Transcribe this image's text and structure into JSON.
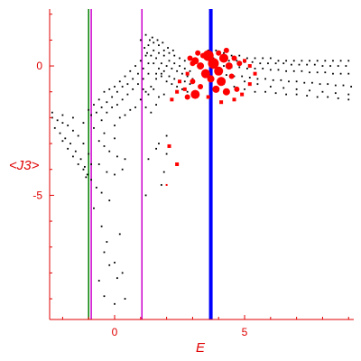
{
  "chart_data": {
    "type": "scatter",
    "title": "",
    "xlabel": "E",
    "ylabel": "<J3>",
    "xlim": [
      -2.5,
      9.2
    ],
    "ylim": [
      -9.8,
      2.2
    ],
    "grid": false,
    "x_ticks": [
      0,
      5
    ],
    "y_ticks": [
      0,
      -5
    ],
    "colors": {
      "axis": "#e00000",
      "points": "#000000",
      "highlight": "#ff0000",
      "line_green": "#008000",
      "line_magenta": "#cc00cc",
      "line_blue": "#0000ff"
    },
    "vertical_lines": [
      {
        "x": -1.0,
        "color": "#008000",
        "width": 1.5
      },
      {
        "x": -0.9,
        "color": "#cc00cc",
        "width": 1.5
      },
      {
        "x": 1.05,
        "color": "#cc00cc",
        "width": 1.5
      },
      {
        "x": 3.7,
        "color": "#0000ff",
        "width": 4
      }
    ],
    "series": [
      {
        "color": "#000000",
        "points": [
          [
            -2.4,
            -2.0
          ],
          [
            -2.2,
            -2.1
          ],
          [
            -2.0,
            -2.2
          ],
          [
            -1.8,
            -2.3
          ],
          [
            -1.6,
            -2.5
          ],
          [
            -1.4,
            -2.7
          ],
          [
            -1.2,
            -3.0
          ],
          [
            -1.0,
            -3.4
          ],
          [
            -0.9,
            -3.8
          ],
          [
            -2.3,
            -2.4
          ],
          [
            -2.1,
            -2.6
          ],
          [
            -1.9,
            -2.8
          ],
          [
            -1.7,
            -3.0
          ],
          [
            -1.5,
            -3.3
          ],
          [
            -1.3,
            -3.6
          ],
          [
            -1.15,
            -3.9
          ],
          [
            -1.05,
            -4.2
          ],
          [
            -2.0,
            -2.9
          ],
          [
            -1.8,
            -3.2
          ],
          [
            -1.6,
            -3.5
          ],
          [
            -1.4,
            -3.8
          ],
          [
            -1.2,
            -4.0
          ],
          [
            -1.1,
            -4.3
          ],
          [
            -2.4,
            -1.8
          ],
          [
            -2.0,
            -1.9
          ],
          [
            -1.6,
            -2.0
          ],
          [
            -1.2,
            -2.2
          ],
          [
            -0.8,
            -2.4
          ],
          [
            -0.4,
            -2.6
          ],
          [
            0.0,
            -2.8
          ],
          [
            -1.0,
            -1.7
          ],
          [
            -0.8,
            -1.5
          ],
          [
            -0.6,
            -1.3
          ],
          [
            -0.4,
            -1.0
          ],
          [
            -0.2,
            -0.9
          ],
          [
            0.0,
            -0.8
          ],
          [
            0.2,
            -0.6
          ],
          [
            0.4,
            -0.4
          ],
          [
            0.6,
            -0.2
          ],
          [
            0.8,
            0.0
          ],
          [
            1.0,
            0.2
          ],
          [
            1.2,
            0.4
          ],
          [
            -0.9,
            -1.9
          ],
          [
            -0.7,
            -1.8
          ],
          [
            -0.5,
            -1.6
          ],
          [
            -0.3,
            -1.4
          ],
          [
            -0.1,
            -1.2
          ],
          [
            0.1,
            -1.0
          ],
          [
            0.3,
            -0.8
          ],
          [
            0.5,
            -0.7
          ],
          [
            0.7,
            -0.5
          ],
          [
            0.9,
            -0.3
          ],
          [
            1.1,
            -0.1
          ],
          [
            1.3,
            0.1
          ],
          [
            -0.5,
            -2.1
          ],
          [
            -0.3,
            -1.8
          ],
          [
            -0.1,
            -1.6
          ],
          [
            0.1,
            -1.5
          ],
          [
            0.3,
            -1.3
          ],
          [
            0.5,
            -1.1
          ],
          [
            0.7,
            -0.9
          ],
          [
            0.9,
            -0.7
          ],
          [
            1.1,
            -0.5
          ],
          [
            1.3,
            -0.3
          ],
          [
            0.0,
            -2.3
          ],
          [
            0.2,
            -2.0
          ],
          [
            0.4,
            -1.9
          ],
          [
            0.6,
            -1.7
          ],
          [
            0.8,
            -1.6
          ],
          [
            1.0,
            -1.3
          ],
          [
            1.2,
            -1.0
          ],
          [
            1.4,
            -0.8
          ],
          [
            1.6,
            -0.5
          ],
          [
            1.8,
            -0.3
          ],
          [
            1.2,
            1.2
          ],
          [
            1.35,
            1.0
          ],
          [
            1.5,
            0.9
          ],
          [
            1.7,
            0.8
          ],
          [
            1.9,
            0.6
          ],
          [
            2.1,
            0.5
          ],
          [
            2.3,
            0.4
          ],
          [
            2.5,
            0.3
          ],
          [
            2.7,
            0.2
          ],
          [
            1.3,
            0.8
          ],
          [
            1.5,
            0.6
          ],
          [
            1.7,
            0.5
          ],
          [
            1.9,
            0.4
          ],
          [
            2.1,
            0.2
          ],
          [
            2.3,
            0.1
          ],
          [
            2.5,
            0.0
          ],
          [
            2.7,
            -0.1
          ],
          [
            2.9,
            -0.2
          ],
          [
            1.4,
            0.4
          ],
          [
            1.6,
            0.3
          ],
          [
            1.8,
            0.1
          ],
          [
            2.0,
            0.0
          ],
          [
            2.2,
            -0.1
          ],
          [
            2.4,
            -0.2
          ],
          [
            2.6,
            -0.3
          ],
          [
            2.8,
            -0.4
          ],
          [
            3.0,
            -0.5
          ],
          [
            1.5,
            0.1
          ],
          [
            1.7,
            -0.1
          ],
          [
            1.9,
            -0.2
          ],
          [
            2.1,
            -0.4
          ],
          [
            2.3,
            -0.5
          ],
          [
            2.5,
            -0.6
          ],
          [
            2.7,
            -0.6
          ],
          [
            2.9,
            -0.7
          ],
          [
            1.6,
            -0.3
          ],
          [
            1.8,
            -0.4
          ],
          [
            2.0,
            -0.6
          ],
          [
            2.2,
            -0.7
          ],
          [
            2.4,
            -0.8
          ],
          [
            2.6,
            -0.9
          ],
          [
            2.8,
            -1.0
          ],
          [
            1.1,
            -0.9
          ],
          [
            1.3,
            -1.1
          ],
          [
            1.5,
            -0.9
          ],
          [
            1.7,
            -1.2
          ],
          [
            1.9,
            -1.1
          ],
          [
            1.2,
            -1.6
          ],
          [
            1.4,
            -1.8
          ],
          [
            1.6,
            -1.5
          ],
          [
            1.0,
            1.0
          ],
          [
            1.15,
            0.7
          ],
          [
            1.25,
            0.5
          ],
          [
            1.45,
            1.1
          ],
          [
            1.65,
            1.0
          ],
          [
            1.85,
            0.9
          ],
          [
            2.05,
            0.7
          ],
          [
            2.25,
            0.6
          ],
          [
            3.6,
            0.6
          ],
          [
            3.9,
            0.6
          ],
          [
            4.2,
            0.5
          ],
          [
            4.5,
            0.4
          ],
          [
            4.8,
            0.4
          ],
          [
            5.1,
            0.3
          ],
          [
            5.4,
            0.3
          ],
          [
            5.7,
            0.3
          ],
          [
            6.0,
            0.3
          ],
          [
            6.3,
            0.2
          ],
          [
            6.6,
            0.2
          ],
          [
            6.9,
            0.2
          ],
          [
            7.2,
            0.2
          ],
          [
            7.5,
            0.2
          ],
          [
            7.8,
            0.2
          ],
          [
            8.1,
            0.2
          ],
          [
            8.4,
            0.2
          ],
          [
            8.7,
            0.2
          ],
          [
            9.0,
            0.2
          ],
          [
            3.8,
            0.3
          ],
          [
            4.1,
            0.3
          ],
          [
            4.4,
            0.2
          ],
          [
            4.7,
            0.2
          ],
          [
            5.0,
            0.15
          ],
          [
            5.3,
            0.15
          ],
          [
            5.6,
            0.1
          ],
          [
            5.9,
            0.1
          ],
          [
            6.2,
            0.1
          ],
          [
            6.5,
            0.1
          ],
          [
            6.8,
            0.05
          ],
          [
            7.1,
            0.05
          ],
          [
            7.4,
            0.05
          ],
          [
            7.7,
            0.05
          ],
          [
            8.0,
            0.0
          ],
          [
            8.3,
            0.0
          ],
          [
            8.6,
            0.0
          ],
          [
            8.9,
            0.0
          ],
          [
            3.9,
            0.0
          ],
          [
            4.2,
            0.0
          ],
          [
            4.5,
            -0.05
          ],
          [
            4.8,
            -0.05
          ],
          [
            5.1,
            -0.1
          ],
          [
            5.4,
            -0.1
          ],
          [
            5.7,
            -0.1
          ],
          [
            6.0,
            -0.15
          ],
          [
            6.3,
            -0.15
          ],
          [
            6.6,
            -0.2
          ],
          [
            6.9,
            -0.2
          ],
          [
            7.2,
            -0.2
          ],
          [
            7.5,
            -0.25
          ],
          [
            7.8,
            -0.25
          ],
          [
            8.1,
            -0.25
          ],
          [
            8.4,
            -0.3
          ],
          [
            8.7,
            -0.3
          ],
          [
            9.0,
            -0.3
          ],
          [
            4.0,
            -0.3
          ],
          [
            4.3,
            -0.35
          ],
          [
            4.6,
            -0.4
          ],
          [
            4.9,
            -0.4
          ],
          [
            5.2,
            -0.45
          ],
          [
            5.5,
            -0.5
          ],
          [
            5.8,
            -0.5
          ],
          [
            6.1,
            -0.55
          ],
          [
            6.4,
            -0.55
          ],
          [
            6.7,
            -0.6
          ],
          [
            7.0,
            -0.6
          ],
          [
            7.3,
            -0.65
          ],
          [
            7.6,
            -0.65
          ],
          [
            7.9,
            -0.7
          ],
          [
            8.2,
            -0.7
          ],
          [
            8.5,
            -0.75
          ],
          [
            8.8,
            -0.75
          ],
          [
            9.1,
            -0.8
          ],
          [
            4.2,
            -0.7
          ],
          [
            4.6,
            -0.8
          ],
          [
            5.0,
            -0.9
          ],
          [
            5.4,
            -1.0
          ],
          [
            5.8,
            -1.0
          ],
          [
            6.2,
            -1.05
          ],
          [
            6.6,
            -1.1
          ],
          [
            7.0,
            -1.1
          ],
          [
            7.4,
            -1.15
          ],
          [
            7.8,
            -1.2
          ],
          [
            8.2,
            -1.2
          ],
          [
            8.6,
            -1.25
          ],
          [
            9.0,
            -1.3
          ],
          [
            5.0,
            -0.6
          ],
          [
            5.5,
            -0.7
          ],
          [
            6.0,
            -0.8
          ],
          [
            6.5,
            -0.85
          ],
          [
            7.0,
            -0.9
          ],
          [
            7.5,
            -0.95
          ],
          [
            8.0,
            -1.0
          ],
          [
            8.5,
            -1.05
          ],
          [
            9.0,
            -1.1
          ],
          [
            -0.6,
            -2.9
          ],
          [
            -0.4,
            -3.1
          ],
          [
            -0.2,
            -3.3
          ],
          [
            0.1,
            -3.5
          ],
          [
            0.4,
            -3.6
          ],
          [
            -0.6,
            -3.8
          ],
          [
            -0.3,
            -4.1
          ],
          [
            0.0,
            -4.2
          ],
          [
            0.3,
            -4.0
          ],
          [
            -0.9,
            -4.4
          ],
          [
            -0.7,
            -4.7
          ],
          [
            -0.5,
            -4.9
          ],
          [
            -0.2,
            -5.2
          ],
          [
            -0.8,
            -5.5
          ],
          [
            -0.5,
            -6.2
          ],
          [
            -0.3,
            -6.8
          ],
          [
            -0.4,
            -7.2
          ],
          [
            0.0,
            -7.6
          ],
          [
            0.3,
            -8.0
          ],
          [
            -0.6,
            -8.3
          ],
          [
            0.1,
            -8.2
          ],
          [
            -0.4,
            -8.9
          ],
          [
            0.0,
            -9.2
          ],
          [
            0.4,
            -9.0
          ],
          [
            -0.2,
            -7.7
          ],
          [
            0.2,
            -6.5
          ],
          [
            1.2,
            -5.0
          ],
          [
            1.8,
            -4.6
          ],
          [
            1.6,
            -3.2
          ],
          [
            2.0,
            -3.4
          ],
          [
            1.9,
            -4.1
          ],
          [
            1.3,
            -3.6
          ],
          [
            1.7,
            -3.0
          ],
          [
            2.0,
            -2.7
          ]
        ]
      },
      {
        "color": "#ff0000",
        "points": [
          [
            2.9,
            0.3,
            3
          ],
          [
            3.1,
            0.2,
            4
          ],
          [
            3.3,
            0.0,
            4
          ],
          [
            3.5,
            -0.3,
            5
          ],
          [
            3.3,
            -0.8,
            3
          ],
          [
            3.1,
            -1.1,
            5
          ],
          [
            2.8,
            -1.2,
            3
          ],
          [
            3.0,
            -0.6,
            3
          ],
          [
            3.6,
            0.4,
            6
          ],
          [
            3.8,
            0.1,
            6
          ],
          [
            4.0,
            -0.2,
            5
          ],
          [
            4.2,
            0.3,
            5
          ],
          [
            4.1,
            -0.6,
            5
          ],
          [
            3.9,
            -0.9,
            4
          ],
          [
            4.3,
            -1.0,
            4
          ],
          [
            3.7,
            -0.5,
            4
          ],
          [
            3.4,
            0.4,
            3
          ],
          [
            4.4,
            0.0,
            4
          ],
          [
            4.5,
            -0.4,
            3
          ],
          [
            4.6,
            0.3,
            3
          ],
          [
            4.8,
            0.1,
            3
          ],
          [
            4.7,
            -0.9,
            3
          ],
          [
            4.9,
            -1.1,
            2
          ],
          [
            5.2,
            -0.7,
            2
          ],
          [
            4.3,
            0.6,
            3
          ],
          [
            4.0,
            0.5,
            3
          ],
          [
            3.2,
            0.5,
            3
          ],
          [
            2.5,
            -0.6,
            2
          ],
          [
            2.7,
            -0.9,
            2
          ],
          [
            3.6,
            -1.2,
            2
          ],
          [
            4.1,
            -1.4,
            2
          ],
          [
            2.4,
            -1.0,
            2
          ],
          [
            2.2,
            -1.3,
            2
          ],
          [
            5.0,
            0.2,
            2
          ],
          [
            5.2,
            0.0,
            2
          ],
          [
            5.4,
            -0.3,
            2
          ],
          [
            4.6,
            -1.3,
            2
          ],
          [
            2.1,
            -3.1,
            2
          ],
          [
            2.4,
            -3.8,
            2
          ],
          [
            2.0,
            -4.6,
            1
          ],
          [
            2.8,
            -0.3,
            2
          ],
          [
            3.0,
            0.1,
            3
          ]
        ]
      }
    ]
  }
}
